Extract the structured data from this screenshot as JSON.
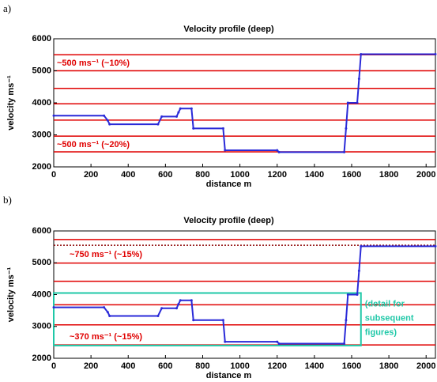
{
  "chart_data": [
    {
      "type": "line",
      "panel_label": "a)",
      "title": "Velocity profile (deep)",
      "x_label": "distance m",
      "y_label": "velocity ms⁻¹",
      "xlim": [
        0,
        2050
      ],
      "ylim": [
        2000,
        6000
      ],
      "xticks": [
        0,
        200,
        400,
        600,
        800,
        1000,
        1200,
        1400,
        1600,
        1800,
        2000
      ],
      "yticks": [
        2000,
        3000,
        4000,
        5000,
        6000
      ],
      "x": [
        0,
        270,
        290,
        300,
        560,
        580,
        660,
        670,
        680,
        740,
        750,
        910,
        920,
        1200,
        1210,
        1560,
        1570,
        1580,
        1630,
        1640,
        1650,
        2050
      ],
      "series": [
        {
          "color": "#2a2ad8",
          "values": [
            3600,
            3600,
            3450,
            3330,
            3330,
            3570,
            3570,
            3700,
            3820,
            3820,
            3200,
            3200,
            2520,
            2520,
            2460,
            2460,
            3200,
            4000,
            4000,
            4750,
            5520,
            5520
          ]
        }
      ],
      "reference_lines": {
        "color": "#e00000",
        "values": [
          5500,
          5000,
          4450,
          3970,
          3460,
          2960,
          2470
        ]
      },
      "annotations": [
        "~500 ms⁻¹ (~10%)",
        "~500 ms⁻¹ (~20%)"
      ]
    },
    {
      "type": "line",
      "panel_label": "b)",
      "title": "Velocity profile (deep)",
      "x_label": "distance m",
      "y_label": "velocity ms⁻¹",
      "xlim": [
        0,
        2050
      ],
      "ylim": [
        2000,
        6000
      ],
      "xticks": [
        0,
        200,
        400,
        600,
        800,
        1000,
        1200,
        1400,
        1600,
        1800,
        2000
      ],
      "yticks": [
        2000,
        3000,
        4000,
        5000,
        6000
      ],
      "x": [
        0,
        270,
        290,
        300,
        560,
        580,
        660,
        670,
        680,
        740,
        750,
        910,
        920,
        1200,
        1210,
        1560,
        1570,
        1580,
        1630,
        1640,
        1650,
        2050
      ],
      "series": [
        {
          "color": "#2a2ad8",
          "values": [
            3600,
            3600,
            3450,
            3330,
            3330,
            3570,
            3570,
            3700,
            3820,
            3820,
            3200,
            3200,
            2520,
            2520,
            2460,
            2460,
            3200,
            4000,
            4000,
            4750,
            5520,
            5520
          ]
        }
      ],
      "reference_lines": {
        "color": "#e00000",
        "values": [
          5730,
          4990,
          4420,
          3680,
          3050,
          2420
        ]
      },
      "dotted_line": {
        "color": "#8b0000",
        "value": 5550
      },
      "highlight_box": {
        "color": "#20c8a8",
        "x": [
          0,
          1650
        ],
        "y": [
          2400,
          4050
        ],
        "text": [
          "(detail for",
          "subsequent",
          "figures)"
        ]
      },
      "annotations": [
        "~750 ms⁻¹ (~15%)",
        "~370 ms⁻¹ (~15%)"
      ]
    }
  ]
}
